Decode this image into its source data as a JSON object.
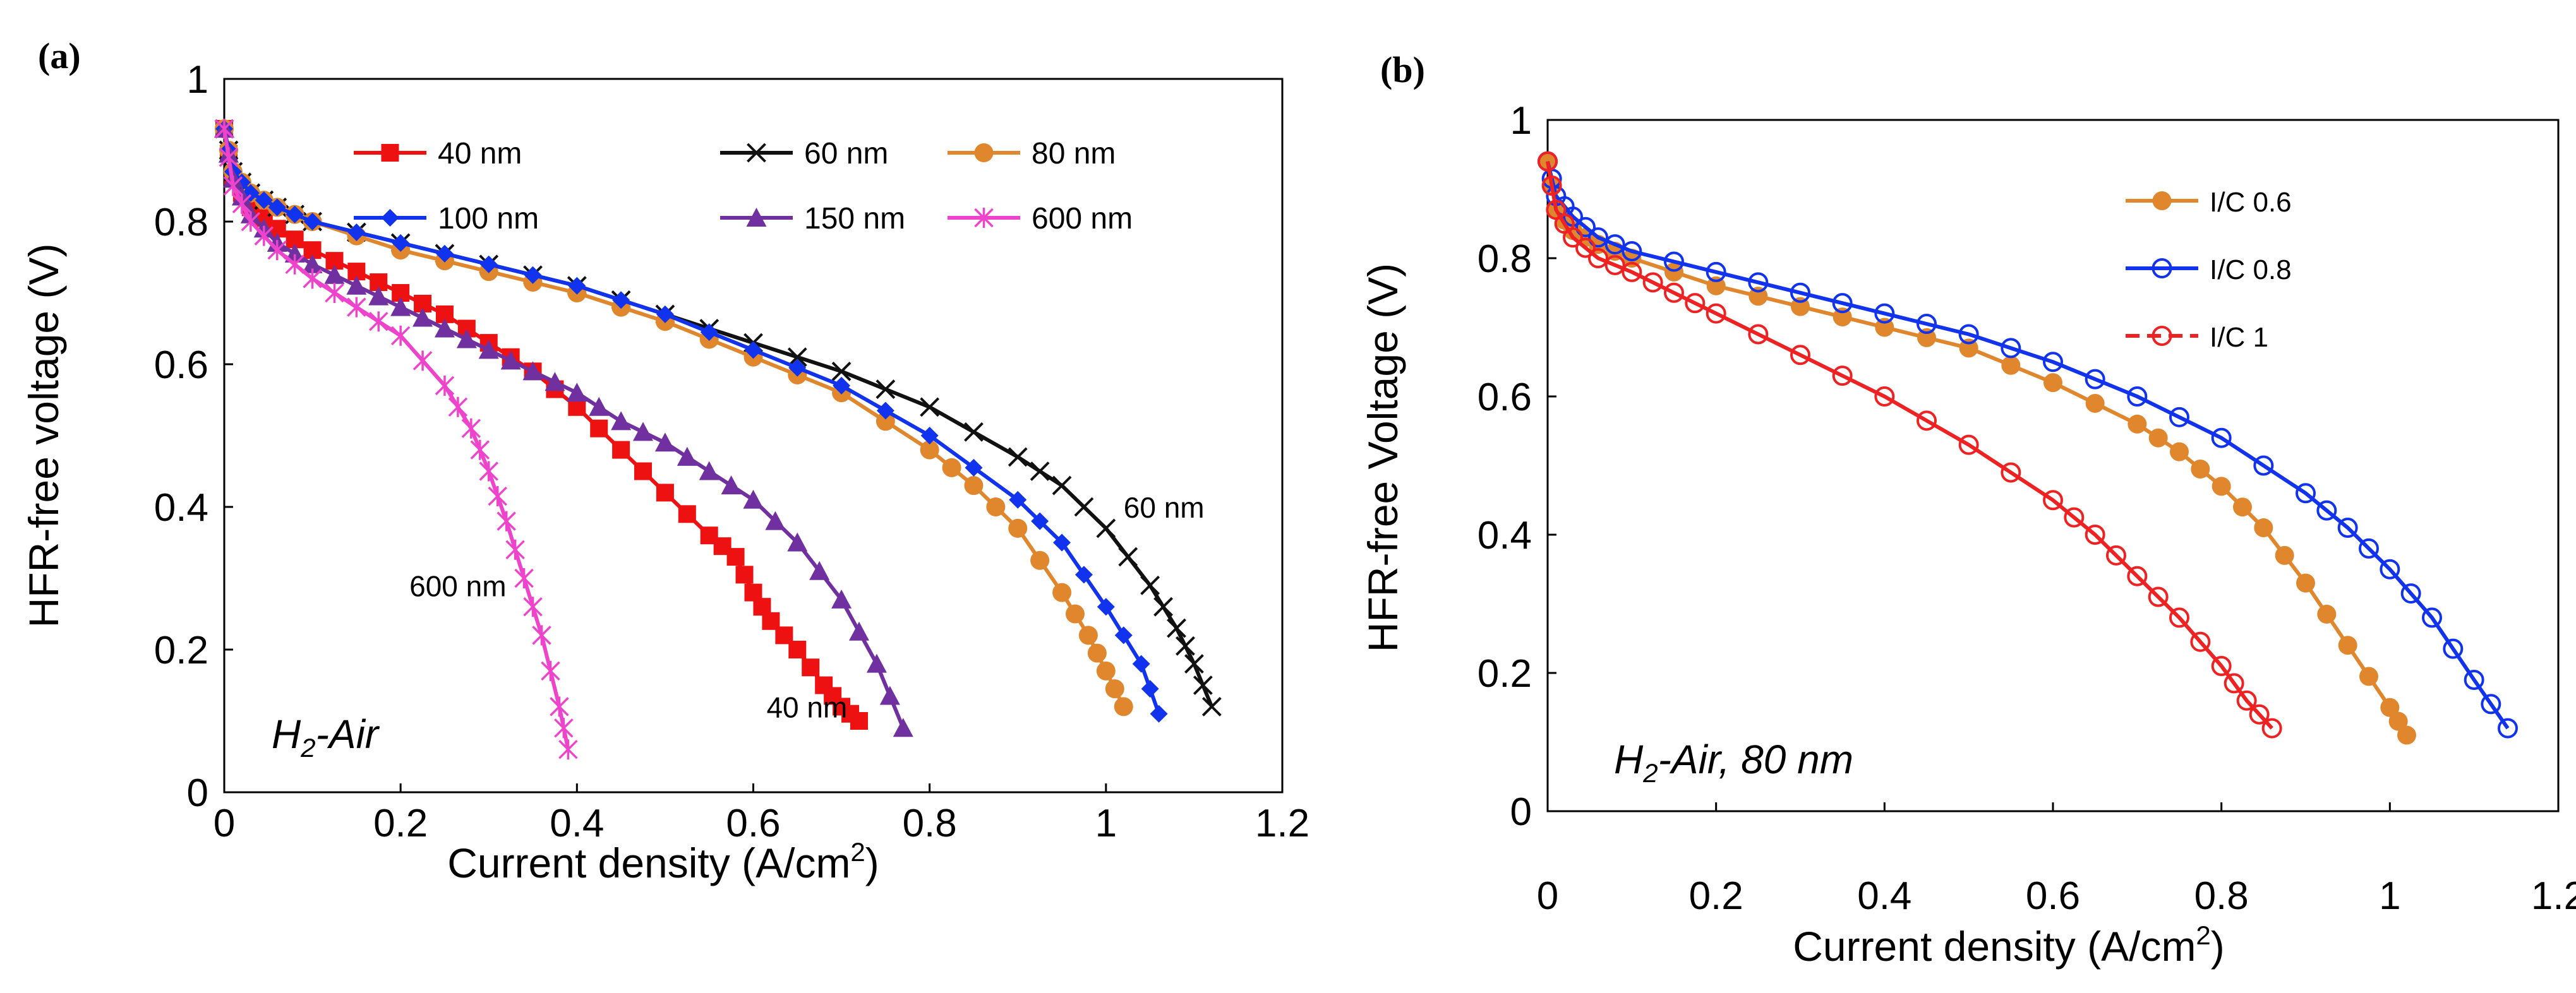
{
  "chart_data": [
    {
      "type": "line",
      "panel_label": "(a)",
      "xlabel": "Current density (A/cm",
      "xlabel_sup": "2",
      "xlabel_end": ")",
      "ylabel": "HFR-free voltage (V)",
      "xlim": [
        0,
        1.2
      ],
      "ylim": [
        0,
        1
      ],
      "xticks": [
        0,
        0.2,
        0.4,
        0.6,
        0.8,
        1,
        1.2
      ],
      "xtick_labels": [
        "0",
        "0.2",
        "0.4",
        "0.6",
        "0.8",
        "1",
        "1.2"
      ],
      "yticks": [
        0,
        0.2,
        0.4,
        0.6,
        0.8,
        1
      ],
      "ytick_labels": [
        "0",
        "0.2",
        "0.4",
        "0.6",
        "0.8",
        "1"
      ],
      "condition": {
        "main": "H",
        "sub": "2",
        "rest": "-Air"
      },
      "annotations": [
        {
          "text": "60 nm",
          "x": 1.02,
          "y": 0.385
        },
        {
          "text": "40 nm",
          "x": 0.615,
          "y": 0.105
        },
        {
          "text": "600 nm",
          "x": 0.21,
          "y": 0.275
        }
      ],
      "series": [
        {
          "name": "40 nm",
          "color": "#ee1111",
          "marker": "square",
          "x": [
            0,
            0.01,
            0.03,
            0.06,
            0.1,
            0.15,
            0.2,
            0.25,
            0.3,
            0.35,
            0.4,
            0.45,
            0.5,
            0.55,
            0.58,
            0.6,
            0.62,
            0.65,
            0.68,
            0.7,
            0.72
          ],
          "y": [
            0.93,
            0.86,
            0.82,
            0.79,
            0.76,
            0.73,
            0.7,
            0.67,
            0.63,
            0.59,
            0.54,
            0.48,
            0.42,
            0.36,
            0.33,
            0.28,
            0.24,
            0.2,
            0.15,
            0.12,
            0.1
          ]
        },
        {
          "name": "60 nm",
          "color": "#111111",
          "marker": "x",
          "x": [
            0,
            0.01,
            0.03,
            0.06,
            0.1,
            0.2,
            0.3,
            0.4,
            0.5,
            0.6,
            0.7,
            0.8,
            0.9,
            0.95,
            1.0,
            1.05,
            1.08,
            1.1,
            1.12
          ],
          "y": [
            0.93,
            0.87,
            0.84,
            0.82,
            0.8,
            0.77,
            0.74,
            0.71,
            0.67,
            0.63,
            0.59,
            0.54,
            0.47,
            0.43,
            0.37,
            0.29,
            0.23,
            0.18,
            0.12
          ]
        },
        {
          "name": "80 nm",
          "color": "#e0872e",
          "marker": "circle",
          "x": [
            0,
            0.01,
            0.03,
            0.06,
            0.1,
            0.2,
            0.3,
            0.4,
            0.5,
            0.6,
            0.7,
            0.8,
            0.85,
            0.9,
            0.95,
            0.98,
            1.0,
            1.02
          ],
          "y": [
            0.93,
            0.87,
            0.84,
            0.82,
            0.8,
            0.76,
            0.73,
            0.7,
            0.66,
            0.61,
            0.56,
            0.48,
            0.43,
            0.37,
            0.28,
            0.22,
            0.17,
            0.12
          ]
        },
        {
          "name": "100 nm",
          "color": "#1133ee",
          "marker": "diamond",
          "x": [
            0,
            0.01,
            0.03,
            0.06,
            0.1,
            0.2,
            0.3,
            0.4,
            0.5,
            0.6,
            0.7,
            0.8,
            0.9,
            0.95,
            1.0,
            1.04,
            1.06
          ],
          "y": [
            0.93,
            0.87,
            0.84,
            0.82,
            0.8,
            0.77,
            0.74,
            0.71,
            0.67,
            0.62,
            0.57,
            0.5,
            0.41,
            0.35,
            0.26,
            0.18,
            0.11
          ]
        },
        {
          "name": "150 nm",
          "color": "#7030a0",
          "marker": "triangle",
          "x": [
            0,
            0.01,
            0.03,
            0.06,
            0.1,
            0.15,
            0.2,
            0.25,
            0.3,
            0.35,
            0.4,
            0.45,
            0.5,
            0.55,
            0.6,
            0.65,
            0.7,
            0.74,
            0.77
          ],
          "y": [
            0.93,
            0.86,
            0.81,
            0.77,
            0.74,
            0.71,
            0.68,
            0.65,
            0.62,
            0.59,
            0.56,
            0.52,
            0.49,
            0.45,
            0.41,
            0.35,
            0.27,
            0.18,
            0.09
          ]
        },
        {
          "name": "600 nm",
          "color": "#ee44cc",
          "marker": "asterisk",
          "x": [
            0,
            0.01,
            0.03,
            0.06,
            0.1,
            0.15,
            0.2,
            0.25,
            0.28,
            0.3,
            0.32,
            0.34,
            0.36,
            0.38,
            0.39
          ],
          "y": [
            0.93,
            0.85,
            0.8,
            0.76,
            0.72,
            0.68,
            0.64,
            0.57,
            0.51,
            0.45,
            0.38,
            0.3,
            0.22,
            0.12,
            0.06
          ]
        }
      ]
    },
    {
      "type": "line",
      "panel_label": "(b)",
      "xlabel": "Current density (A/cm",
      "xlabel_sup": "2",
      "xlabel_end": ")",
      "ylabel": "HFR-free Voltage (V)",
      "xlim": [
        0,
        1.2
      ],
      "ylim": [
        0,
        1
      ],
      "xticks": [
        0,
        0.2,
        0.4,
        0.6,
        0.8,
        1,
        1.2
      ],
      "xtick_labels": [
        "0",
        "0.2",
        "0.4",
        "0.6",
        "0.8",
        "1",
        "1.2"
      ],
      "yticks": [
        0,
        0.2,
        0.4,
        0.6,
        0.8,
        1
      ],
      "ytick_labels": [
        "0",
        "0.2",
        "0.4",
        "0.6",
        "0.8",
        "1"
      ],
      "condition": {
        "main": "H",
        "sub": "2",
        "rest": "-Air, 80 nm"
      },
      "series": [
        {
          "name": "I/C 0.6",
          "color": "#e0872e",
          "marker": "circle",
          "x": [
            0,
            0.01,
            0.03,
            0.06,
            0.1,
            0.2,
            0.3,
            0.4,
            0.5,
            0.6,
            0.7,
            0.75,
            0.8,
            0.85,
            0.9,
            0.95,
            1.0,
            1.02
          ],
          "y": [
            0.94,
            0.87,
            0.84,
            0.82,
            0.8,
            0.76,
            0.73,
            0.7,
            0.67,
            0.62,
            0.56,
            0.52,
            0.47,
            0.41,
            0.33,
            0.24,
            0.15,
            0.11
          ]
        },
        {
          "name": "I/C 0.8",
          "color": "#1133ee",
          "marker": "open-circle",
          "x": [
            0,
            0.01,
            0.03,
            0.06,
            0.1,
            0.2,
            0.3,
            0.4,
            0.5,
            0.6,
            0.7,
            0.8,
            0.9,
            0.95,
            1.0,
            1.05,
            1.1,
            1.14
          ],
          "y": [
            0.94,
            0.89,
            0.86,
            0.83,
            0.81,
            0.78,
            0.75,
            0.72,
            0.69,
            0.65,
            0.6,
            0.54,
            0.46,
            0.41,
            0.35,
            0.28,
            0.19,
            0.12
          ]
        },
        {
          "name": "I/C 1",
          "color": "#ee2222",
          "marker": "open-circle-dash",
          "x": [
            0,
            0.01,
            0.03,
            0.06,
            0.1,
            0.15,
            0.2,
            0.3,
            0.4,
            0.5,
            0.6,
            0.65,
            0.7,
            0.75,
            0.8,
            0.83,
            0.86
          ],
          "y": [
            0.94,
            0.87,
            0.83,
            0.8,
            0.78,
            0.75,
            0.72,
            0.66,
            0.6,
            0.53,
            0.45,
            0.4,
            0.34,
            0.28,
            0.21,
            0.16,
            0.12
          ]
        }
      ]
    }
  ]
}
